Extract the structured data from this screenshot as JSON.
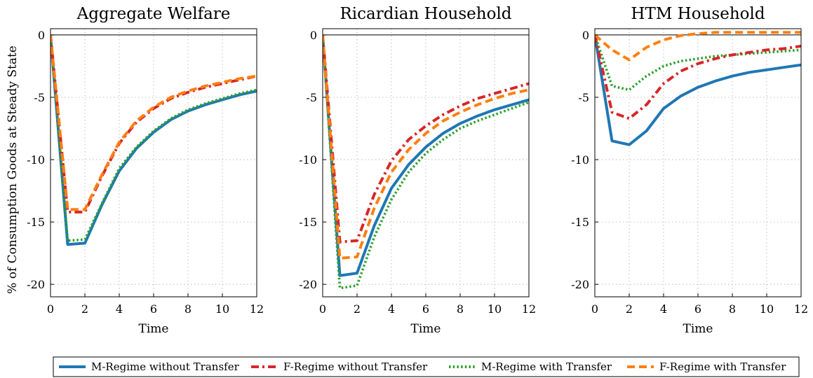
{
  "figure": {
    "ylabel": "% of Consumption Goods at Steady State"
  },
  "legend": {
    "placement": "bottom-center",
    "entries": [
      {
        "label": "M-Regime without Transfer",
        "color": "#1f77b4",
        "style": "solid"
      },
      {
        "label": "F-Regime without Transfer",
        "color": "#d62728",
        "style": "dashdot"
      },
      {
        "label": "M-Regime with Transfer",
        "color": "#2ca02c",
        "style": "dotted"
      },
      {
        "label": "F-Regime with Transfer",
        "color": "#ff7f0e",
        "style": "dashed"
      }
    ]
  },
  "chart_data": [
    {
      "type": "line",
      "title": "Aggregate Welfare",
      "xlabel": "Time",
      "ylabel": "% of Consumption Goods at Steady State",
      "xlim": [
        0,
        12
      ],
      "ylim": [
        -21,
        0.5
      ],
      "xticks": [
        0,
        2,
        4,
        6,
        8,
        10,
        12
      ],
      "yticks": [
        0,
        -5,
        -10,
        -15,
        -20
      ],
      "grid": true,
      "x": [
        0,
        1,
        2,
        3,
        4,
        5,
        6,
        7,
        8,
        9,
        10,
        11,
        12
      ],
      "series": [
        {
          "name": "M-Regime without Transfer",
          "values": [
            0,
            -16.8,
            -16.7,
            -13.6,
            -10.9,
            -9.1,
            -7.8,
            -6.8,
            -6.1,
            -5.6,
            -5.2,
            -4.8,
            -4.5
          ]
        },
        {
          "name": "F-Regime without Transfer",
          "values": [
            0,
            -14.2,
            -14.2,
            -11.3,
            -8.7,
            -7.0,
            -5.9,
            -5.1,
            -4.6,
            -4.2,
            -3.9,
            -3.6,
            -3.3
          ]
        },
        {
          "name": "M-Regime with Transfer",
          "values": [
            0,
            -16.5,
            -16.4,
            -13.5,
            -10.7,
            -9.0,
            -7.7,
            -6.7,
            -6.0,
            -5.5,
            -5.1,
            -4.7,
            -4.4
          ]
        },
        {
          "name": "F-Regime with Transfer",
          "values": [
            0,
            -14.0,
            -14.0,
            -11.2,
            -8.6,
            -6.9,
            -5.8,
            -5.0,
            -4.5,
            -4.1,
            -3.8,
            -3.5,
            -3.3
          ]
        }
      ]
    },
    {
      "type": "line",
      "title": "Ricardian Household",
      "xlabel": "Time",
      "ylabel": "",
      "xlim": [
        0,
        12
      ],
      "ylim": [
        -21,
        0.5
      ],
      "xticks": [
        0,
        2,
        4,
        6,
        8,
        10,
        12
      ],
      "yticks": [
        0,
        -5,
        -10,
        -15,
        -20
      ],
      "grid": true,
      "x": [
        0,
        1,
        2,
        3,
        4,
        5,
        6,
        7,
        8,
        9,
        10,
        11,
        12
      ],
      "series": [
        {
          "name": "M-Regime without Transfer",
          "values": [
            0,
            -19.3,
            -19.1,
            -15.3,
            -12.3,
            -10.4,
            -9.0,
            -7.9,
            -7.1,
            -6.5,
            -6.0,
            -5.6,
            -5.2
          ]
        },
        {
          "name": "F-Regime without Transfer",
          "values": [
            0,
            -16.6,
            -16.5,
            -12.8,
            -10.1,
            -8.4,
            -7.3,
            -6.4,
            -5.7,
            -5.1,
            -4.7,
            -4.3,
            -3.9
          ]
        },
        {
          "name": "M-Regime with Transfer",
          "values": [
            0,
            -20.3,
            -20.1,
            -16.2,
            -13.2,
            -11.0,
            -9.5,
            -8.4,
            -7.5,
            -6.9,
            -6.4,
            -5.9,
            -5.4
          ]
        },
        {
          "name": "F-Regime with Transfer",
          "values": [
            0,
            -17.9,
            -17.8,
            -13.9,
            -11.0,
            -9.2,
            -7.9,
            -6.9,
            -6.2,
            -5.6,
            -5.1,
            -4.7,
            -4.4
          ]
        }
      ]
    },
    {
      "type": "line",
      "title": "HTM Household",
      "xlabel": "Time",
      "ylabel": "",
      "xlim": [
        0,
        12
      ],
      "ylim": [
        -21,
        0.5
      ],
      "xticks": [
        0,
        2,
        4,
        6,
        8,
        10,
        12
      ],
      "yticks": [
        0,
        -5,
        -10,
        -15,
        -20
      ],
      "grid": true,
      "x": [
        0,
        1,
        2,
        3,
        4,
        5,
        6,
        7,
        8,
        9,
        10,
        11,
        12
      ],
      "series": [
        {
          "name": "M-Regime without Transfer",
          "values": [
            0,
            -8.5,
            -8.8,
            -7.7,
            -5.9,
            -4.9,
            -4.2,
            -3.7,
            -3.3,
            -3.0,
            -2.8,
            -2.6,
            -2.4
          ]
        },
        {
          "name": "F-Regime without Transfer",
          "values": [
            0,
            -6.2,
            -6.7,
            -5.6,
            -3.9,
            -2.9,
            -2.3,
            -1.9,
            -1.6,
            -1.4,
            -1.2,
            -1.1,
            -0.9
          ]
        },
        {
          "name": "M-Regime with Transfer",
          "values": [
            0,
            -4.1,
            -4.4,
            -3.3,
            -2.5,
            -2.1,
            -1.9,
            -1.7,
            -1.6,
            -1.5,
            -1.4,
            -1.3,
            -1.2
          ]
        },
        {
          "name": "F-Regime with Transfer",
          "values": [
            0,
            -1.2,
            -2.0,
            -1.0,
            -0.4,
            -0.05,
            0.1,
            0.2,
            0.2,
            0.2,
            0.2,
            0.2,
            0.2
          ]
        }
      ]
    }
  ]
}
